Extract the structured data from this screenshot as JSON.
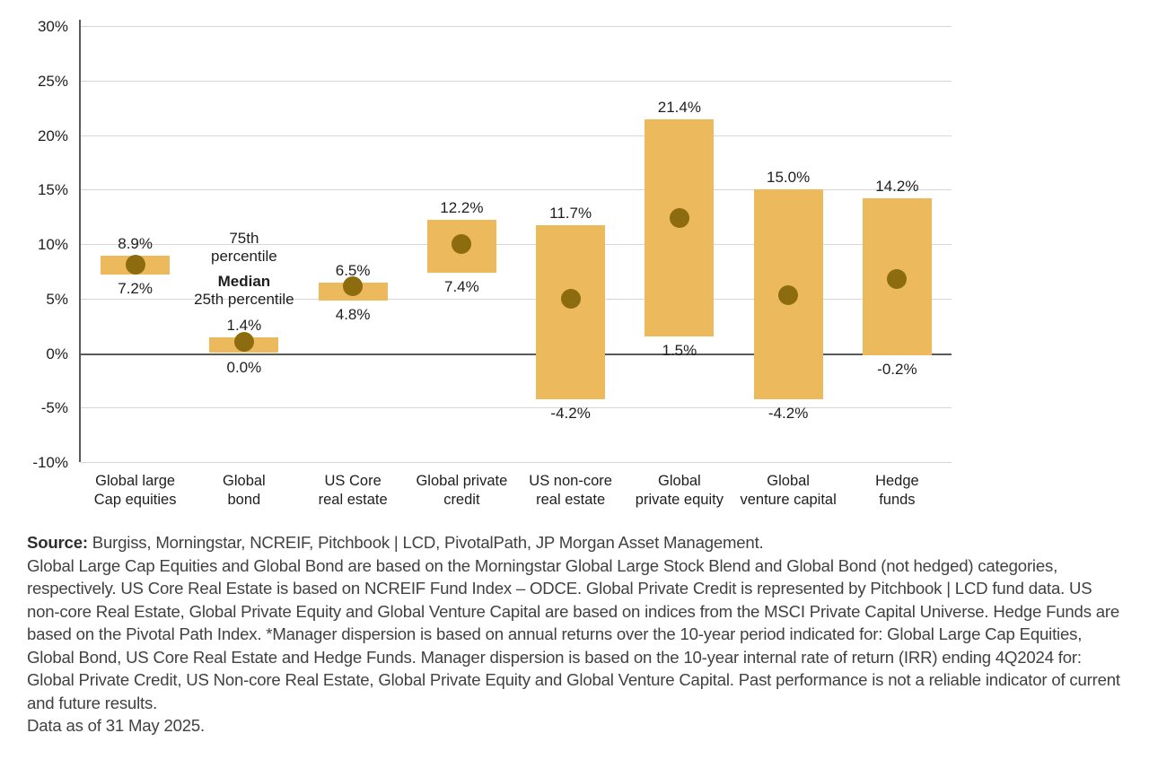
{
  "chart_data": {
    "type": "bar",
    "subtype": "floating-range-bars-with-median-dot",
    "title": "",
    "categories": [
      [
        "Global large",
        "Cap equities"
      ],
      [
        "Global",
        "bond"
      ],
      [
        "US Core",
        "real estate"
      ],
      [
        "Global private",
        "credit"
      ],
      [
        "US non-core",
        "real estate"
      ],
      [
        "Global",
        "private equity"
      ],
      [
        "Global",
        "venture capital"
      ],
      [
        "Hedge",
        "funds"
      ]
    ],
    "series": [
      {
        "name": "75th percentile",
        "values": [
          8.9,
          1.4,
          6.5,
          12.2,
          11.7,
          21.4,
          15.0,
          14.2
        ]
      },
      {
        "name": "Median",
        "values": [
          8.1,
          1.0,
          6.1,
          10.0,
          5.0,
          12.4,
          5.3,
          6.8
        ]
      },
      {
        "name": "25th percentile",
        "values": [
          7.2,
          0.0,
          4.8,
          7.4,
          -4.2,
          1.5,
          -4.2,
          -0.2
        ]
      }
    ],
    "p75_labels": [
      "8.9%",
      "1.4%",
      "6.5%",
      "12.2%",
      "11.7%",
      "21.4%",
      "15.0%",
      "14.2%"
    ],
    "p25_labels": [
      "7.2%",
      "0.0%",
      "4.8%",
      "7.4%",
      "-4.2%",
      "1.5%",
      "-4.2%",
      "-0.2%"
    ],
    "xlabel": "",
    "ylabel": "",
    "ylim": [
      -10,
      30
    ],
    "y_tick_values": [
      30,
      25,
      20,
      15,
      10,
      5,
      0,
      -5,
      -10
    ],
    "y_tick_labels": [
      "30%",
      "25%",
      "20%",
      "15%",
      "10%",
      "5%",
      "0%",
      "-5%",
      "-10%"
    ],
    "grid": true,
    "legend_position": "inline-annotation-over-second-category",
    "colors": {
      "bar": "#ecb95c",
      "dot": "#8d6c10",
      "gridline": "#d6d6d6",
      "zero_line": "#58595b",
      "axis": "#58595b",
      "text": "#1e1e1e"
    }
  },
  "annotations": {
    "p75_line1": "75th",
    "p75_line2": "percentile",
    "median": "Median",
    "p25": "25th percentile"
  },
  "footer": {
    "source_label": "Source:",
    "source_rest": " Burgiss, Morningstar, NCREIF, Pitchbook | LCD, PivotalPath, JP Morgan Asset Management.",
    "body": "Global Large Cap Equities and Global Bond are based on the Morningstar Global Large Stock Blend and Global Bond (not hedged) categories, respectively. US Core Real Estate is based on NCREIF Fund Index – ODCE. Global Private Credit is represented by Pitchbook | LCD fund data. US non-core Real Estate, Global Private Equity and Global Venture Capital are based on indices from the MSCI Private Capital Universe. Hedge Funds are based on the Pivotal Path Index. *Manager dispersion is based on annual returns over the 10-year period indicated for: Global Large Cap Equities, Global Bond, US Core Real Estate and Hedge Funds. Manager dispersion is based on the 10-year internal rate of return (IRR) ending 4Q2024 for: Global Private Credit, US Non-core Real Estate, Global Private Equity and Global Venture Capital. Past performance is not a reliable indicator of current and future results.",
    "data_as_of": "Data as of 31 May 2025."
  }
}
